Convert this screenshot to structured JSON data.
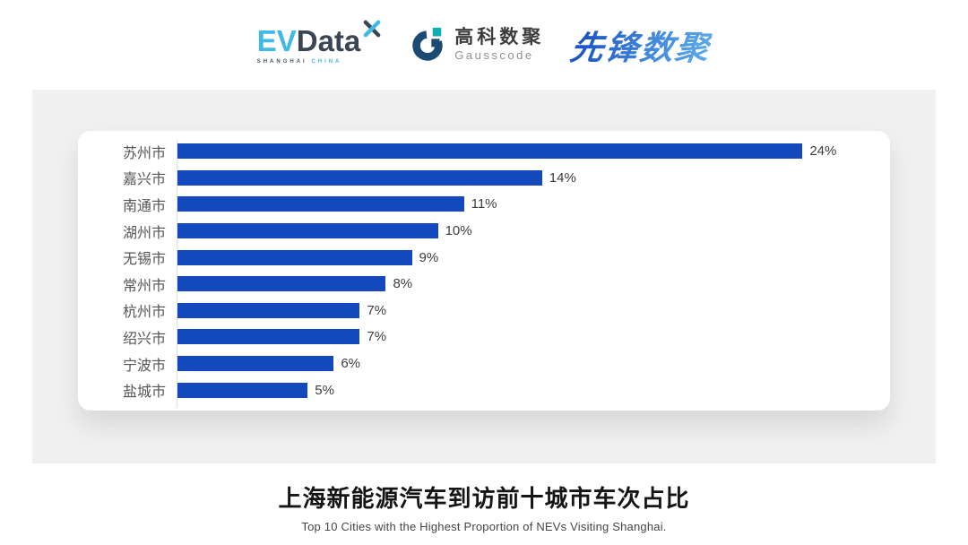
{
  "page": {
    "background": "#ffffff",
    "panel_background": "#f0f0f0",
    "card_background": "#ffffff"
  },
  "header": {
    "evdata_logo": {
      "ev": "EV",
      "data": "Data",
      "tagline_left": "SHANGHAI",
      "tagline_right": "CHINA",
      "accent_color": "#3fb9e5",
      "dark_color": "#3a4653"
    },
    "gausscode_logo": {
      "name_cn": "高科数聚",
      "name_en": "Gausscode",
      "mark_dark_color": "#1b4a74",
      "mark_teal_color": "#10aeb4"
    },
    "pioneer_logo": {
      "text": "先锋数聚",
      "color": "#2a6fd2"
    }
  },
  "chart_data": {
    "type": "bar",
    "orientation": "horizontal",
    "title": "上海新能源汽车到访前十城市车次占比",
    "subtitle": "Top 10 Cities with the Highest Proportion of NEVs Visiting Shanghai.",
    "categories": [
      "苏州市",
      "嘉兴市",
      "南通市",
      "湖州市",
      "无锡市",
      "常州市",
      "杭州市",
      "绍兴市",
      "宁波市",
      "盐城市"
    ],
    "values": [
      24,
      14,
      11,
      10,
      9,
      8,
      7,
      7,
      6,
      5
    ],
    "value_labels": [
      "24%",
      "14%",
      "11%",
      "10%",
      "9%",
      "8%",
      "7%",
      "7%",
      "6%",
      "5%"
    ],
    "unit": "%",
    "xlim": [
      0,
      26.5
    ],
    "bar_color": "#1349bc",
    "axis_line_color": "#e2e2e2",
    "grid": false,
    "legend": false
  },
  "footer": {
    "title": "上海新能源汽车到访前十城市车次占比",
    "subtitle": "Top 10 Cities with the Highest Proportion of NEVs Visiting Shanghai."
  }
}
